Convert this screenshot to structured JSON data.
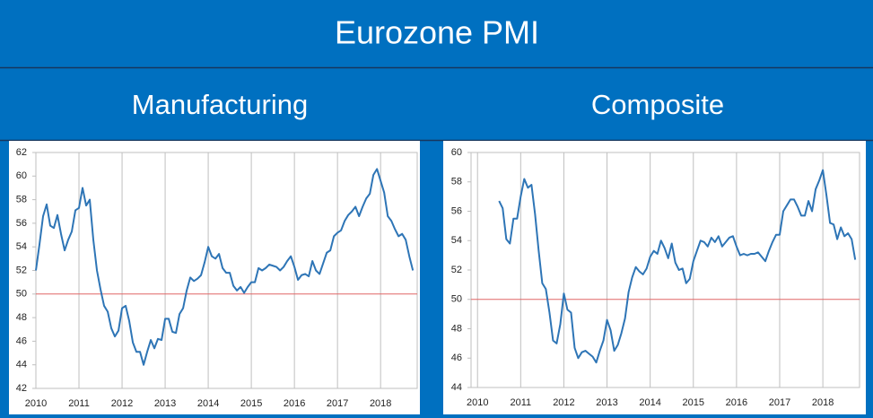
{
  "title": "Eurozone PMI",
  "chart_data": [
    {
      "type": "line",
      "title": "Manufacturing",
      "color": "#2e75b6",
      "xlim": [
        2010,
        2018.85
      ],
      "xticks": [
        2010,
        2011,
        2012,
        2013,
        2014,
        2015,
        2016,
        2017,
        2018
      ],
      "ylim": [
        42,
        62
      ],
      "yticks": [
        42,
        44,
        46,
        48,
        50,
        52,
        54,
        56,
        58,
        60,
        62
      ],
      "grid": "x",
      "reference_line": {
        "value": 50,
        "color": "#e06666"
      },
      "x": [
        2010,
        2010.083,
        2010.167,
        2010.25,
        2010.333,
        2010.417,
        2010.5,
        2010.583,
        2010.667,
        2010.75,
        2010.833,
        2010.917,
        2011,
        2011.083,
        2011.167,
        2011.25,
        2011.333,
        2011.417,
        2011.5,
        2011.583,
        2011.667,
        2011.75,
        2011.833,
        2011.917,
        2012,
        2012.083,
        2012.167,
        2012.25,
        2012.333,
        2012.417,
        2012.5,
        2012.583,
        2012.667,
        2012.75,
        2012.833,
        2012.917,
        2013,
        2013.083,
        2013.167,
        2013.25,
        2013.333,
        2013.417,
        2013.5,
        2013.583,
        2013.667,
        2013.75,
        2013.833,
        2013.917,
        2014,
        2014.083,
        2014.167,
        2014.25,
        2014.333,
        2014.417,
        2014.5,
        2014.583,
        2014.667,
        2014.75,
        2014.833,
        2014.917,
        2015,
        2015.083,
        2015.167,
        2015.25,
        2015.333,
        2015.417,
        2015.5,
        2015.583,
        2015.667,
        2015.75,
        2015.833,
        2015.917,
        2016,
        2016.083,
        2016.167,
        2016.25,
        2016.333,
        2016.417,
        2016.5,
        2016.583,
        2016.667,
        2016.75,
        2016.833,
        2016.917,
        2017,
        2017.083,
        2017.167,
        2017.25,
        2017.333,
        2017.417,
        2017.5,
        2017.583,
        2017.667,
        2017.75,
        2017.833,
        2017.917,
        2018,
        2018.083,
        2018.167,
        2018.25,
        2018.333,
        2018.417,
        2018.5,
        2018.583,
        2018.667,
        2018.75
      ],
      "values": [
        52.0,
        54.2,
        56.6,
        57.6,
        55.8,
        55.6,
        56.7,
        55.1,
        53.7,
        54.6,
        55.3,
        57.1,
        57.3,
        59.0,
        57.5,
        58.0,
        54.6,
        52.0,
        50.4,
        49.0,
        48.5,
        47.1,
        46.4,
        46.9,
        48.8,
        49.0,
        47.7,
        45.9,
        45.1,
        45.1,
        44.0,
        45.1,
        46.1,
        45.4,
        46.2,
        46.1,
        47.9,
        47.9,
        46.8,
        46.7,
        48.3,
        48.8,
        50.3,
        51.4,
        51.1,
        51.3,
        51.6,
        52.7,
        54.0,
        53.2,
        53.0,
        53.4,
        52.2,
        51.8,
        51.8,
        50.7,
        50.3,
        50.6,
        50.1,
        50.6,
        51.0,
        51.0,
        52.2,
        52.0,
        52.2,
        52.5,
        52.4,
        52.3,
        52.0,
        52.3,
        52.8,
        53.2,
        52.3,
        51.2,
        51.6,
        51.7,
        51.5,
        52.8,
        52.0,
        51.7,
        52.6,
        53.5,
        53.7,
        54.9,
        55.2,
        55.4,
        56.2,
        56.7,
        57.0,
        57.4,
        56.6,
        57.4,
        58.1,
        58.5,
        60.1,
        60.6,
        59.6,
        58.6,
        56.6,
        56.2,
        55.5,
        54.9,
        55.1,
        54.6,
        53.2,
        52.0
      ]
    },
    {
      "type": "line",
      "title": "Composite",
      "color": "#2e75b6",
      "xlim": [
        2009.85,
        2018.85
      ],
      "xticks": [
        2010,
        2011,
        2012,
        2013,
        2014,
        2015,
        2016,
        2017,
        2018
      ],
      "ylim": [
        44,
        60
      ],
      "yticks": [
        44,
        46,
        48,
        50,
        52,
        54,
        56,
        58,
        60
      ],
      "grid": "x",
      "reference_line": {
        "value": 50,
        "color": "#e06666"
      },
      "x": [
        2010.5,
        2010.583,
        2010.667,
        2010.75,
        2010.833,
        2010.917,
        2011,
        2011.083,
        2011.167,
        2011.25,
        2011.333,
        2011.417,
        2011.5,
        2011.583,
        2011.667,
        2011.75,
        2011.833,
        2011.917,
        2012,
        2012.083,
        2012.167,
        2012.25,
        2012.333,
        2012.417,
        2012.5,
        2012.583,
        2012.667,
        2012.75,
        2012.833,
        2012.917,
        2013,
        2013.083,
        2013.167,
        2013.25,
        2013.333,
        2013.417,
        2013.5,
        2013.583,
        2013.667,
        2013.75,
        2013.833,
        2013.917,
        2014,
        2014.083,
        2014.167,
        2014.25,
        2014.333,
        2014.417,
        2014.5,
        2014.583,
        2014.667,
        2014.75,
        2014.833,
        2014.917,
        2015,
        2015.083,
        2015.167,
        2015.25,
        2015.333,
        2015.417,
        2015.5,
        2015.583,
        2015.667,
        2015.75,
        2015.833,
        2015.917,
        2016,
        2016.083,
        2016.167,
        2016.25,
        2016.333,
        2016.417,
        2016.5,
        2016.583,
        2016.667,
        2016.75,
        2016.833,
        2016.917,
        2017,
        2017.083,
        2017.167,
        2017.25,
        2017.333,
        2017.417,
        2017.5,
        2017.583,
        2017.667,
        2017.75,
        2017.833,
        2017.917,
        2018,
        2018.083,
        2018.167,
        2018.25,
        2018.333,
        2018.417,
        2018.5,
        2018.583,
        2018.667,
        2018.75
      ],
      "values": [
        56.7,
        56.2,
        54.1,
        53.8,
        55.5,
        55.5,
        57.0,
        58.2,
        57.6,
        57.8,
        55.8,
        53.3,
        51.1,
        50.7,
        49.1,
        47.2,
        47.0,
        48.3,
        50.4,
        49.3,
        49.1,
        46.7,
        46.0,
        46.4,
        46.5,
        46.3,
        46.1,
        45.7,
        46.5,
        47.2,
        48.6,
        47.9,
        46.5,
        46.9,
        47.7,
        48.7,
        50.5,
        51.5,
        52.2,
        51.9,
        51.7,
        52.1,
        52.9,
        53.3,
        53.1,
        54.0,
        53.5,
        52.8,
        53.8,
        52.5,
        52.0,
        52.1,
        51.1,
        51.4,
        52.6,
        53.3,
        54.0,
        53.9,
        53.6,
        54.2,
        53.9,
        54.3,
        53.6,
        53.9,
        54.2,
        54.3,
        53.6,
        53.0,
        53.1,
        53.0,
        53.1,
        53.1,
        53.2,
        52.9,
        52.6,
        53.3,
        53.9,
        54.4,
        54.4,
        56.0,
        56.4,
        56.8,
        56.8,
        56.3,
        55.7,
        55.7,
        56.7,
        56.0,
        57.5,
        58.1,
        58.8,
        57.1,
        55.2,
        55.1,
        54.1,
        54.9,
        54.3,
        54.5,
        54.1,
        52.7
      ]
    }
  ]
}
